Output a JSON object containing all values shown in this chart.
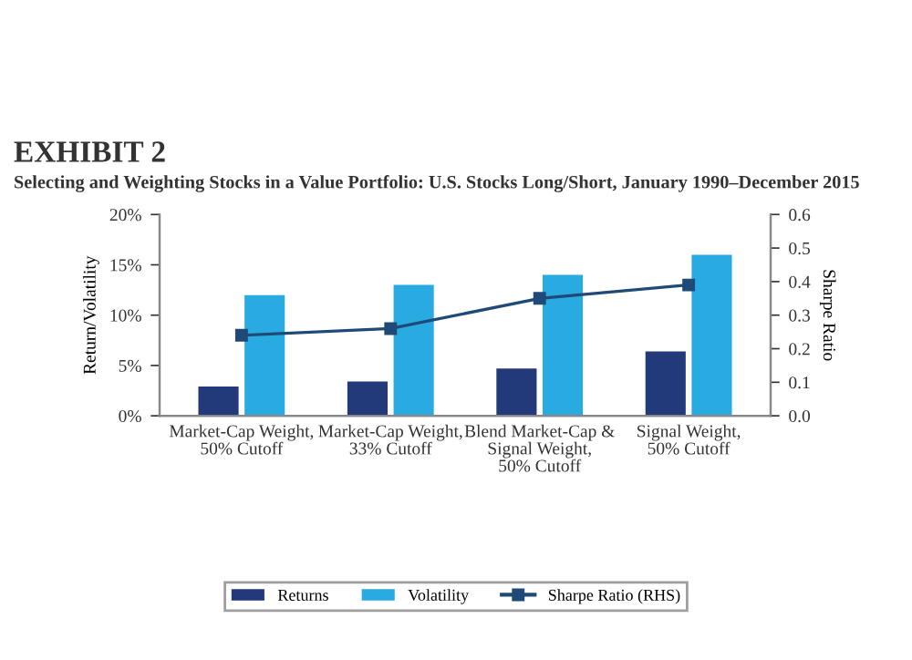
{
  "chart_data": {
    "type": "bar",
    "title": "EXHIBIT 2",
    "subtitle": "Selecting and Weighting Stocks in a Value Portfolio: U.S. Stocks Long/Short, January 1990–December 2015",
    "categories": [
      "Market-Cap Weight,\n50% Cutoff",
      "Market-Cap Weight,\n33% Cutoff",
      "Blend Market-Cap &\nSignal Weight,\n50% Cutoff",
      "Signal Weight,\n50% Cutoff"
    ],
    "series": [
      {
        "name": "Returns",
        "color": "#233a7a",
        "values": [
          2.9,
          3.4,
          4.7,
          6.4
        ]
      },
      {
        "name": "Volatility",
        "color": "#29abe2",
        "values": [
          12,
          13,
          14,
          16
        ]
      },
      {
        "name": "Sharpe Ratio (RHS)",
        "type": "line",
        "axis": "y2",
        "color": "#1f4a78",
        "marker": "square",
        "values": [
          0.24,
          0.26,
          0.35,
          0.39
        ]
      }
    ],
    "ylabel": "Return/Volatility",
    "y2label": "Sharpe Ratio",
    "ylim": [
      0,
      20
    ],
    "yticks": [
      {
        "value": 0,
        "label": "0%"
      },
      {
        "value": 5,
        "label": "5%"
      },
      {
        "value": 10,
        "label": "10%"
      },
      {
        "value": 15,
        "label": "15%"
      },
      {
        "value": 20,
        "label": "20%"
      }
    ],
    "y2lim": [
      0,
      0.6
    ],
    "y2ticks": [
      {
        "value": 0,
        "label": "0.0"
      },
      0.1,
      0.2,
      0.3,
      0.4,
      0.5,
      0.6
    ],
    "legend": "bottom",
    "grid": false
  }
}
